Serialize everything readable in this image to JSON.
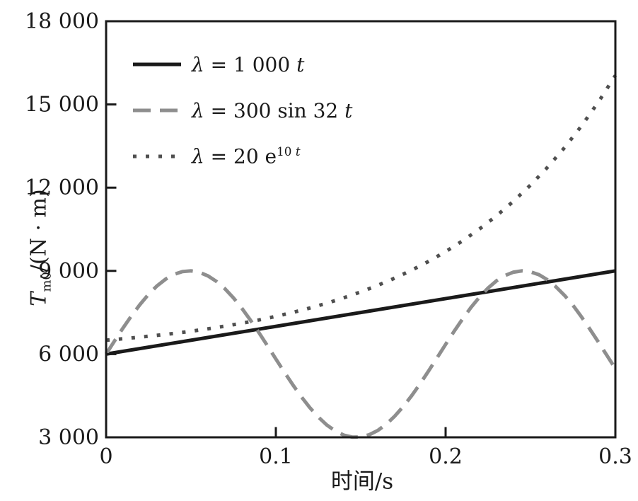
{
  "chart_data": {
    "type": "line",
    "title": "",
    "xlabel": "时间/s",
    "ylabel_segments": [
      {
        "text": "T",
        "style": "italic"
      },
      {
        "text": "m0",
        "style": "sub"
      },
      {
        "text": "/(N · m)",
        "style": "normal"
      }
    ],
    "xlim": [
      0,
      0.3
    ],
    "ylim": [
      3000,
      18000
    ],
    "grid": false,
    "legend_position": "upper-left-inside",
    "xticks": [
      {
        "v": 0,
        "label": "0"
      },
      {
        "v": 0.1,
        "label": "0.1"
      },
      {
        "v": 0.2,
        "label": "0.2"
      },
      {
        "v": 0.3,
        "label": "0.3"
      }
    ],
    "yticks": [
      {
        "v": 3000,
        "label": "3 000"
      },
      {
        "v": 6000,
        "label": "6 000"
      },
      {
        "v": 9000,
        "label": "9 000"
      },
      {
        "v": 12000,
        "label": "12 000"
      },
      {
        "v": 15000,
        "label": "15 000"
      },
      {
        "v": 18000,
        "label": "18 000"
      }
    ],
    "series": [
      {
        "name": "lambda-1000t",
        "style": "solid",
        "color": "#1a1a1a",
        "legend_segments": [
          {
            "text": "λ",
            "style": "italic"
          },
          {
            "text": " = 1 000 ",
            "style": "normal"
          },
          {
            "text": "t",
            "style": "italic"
          }
        ],
        "points": [
          [
            0,
            6000
          ],
          [
            0.3,
            9000
          ]
        ]
      },
      {
        "name": "lambda-300sin32t",
        "style": "dashed",
        "color": "#8e8e8e",
        "legend_segments": [
          {
            "text": "λ",
            "style": "italic"
          },
          {
            "text": " = 300 sin 32 ",
            "style": "normal"
          },
          {
            "text": "t",
            "style": "italic"
          }
        ],
        "points": [
          [
            0,
            6000
          ],
          [
            0.005,
            6478
          ],
          [
            0.01,
            6944
          ],
          [
            0.015,
            7385
          ],
          [
            0.02,
            7792
          ],
          [
            0.025,
            8152
          ],
          [
            0.03,
            8458
          ],
          [
            0.035,
            8700
          ],
          [
            0.04,
            8874
          ],
          [
            0.045,
            8975
          ],
          [
            0.05,
            8999
          ],
          [
            0.055,
            8947
          ],
          [
            0.06,
            8819
          ],
          [
            0.065,
            8620
          ],
          [
            0.07,
            8355
          ],
          [
            0.075,
            8027
          ],
          [
            0.08,
            7648
          ],
          [
            0.085,
            7228
          ],
          [
            0.09,
            6776
          ],
          [
            0.095,
            6304
          ],
          [
            0.1,
            5825
          ],
          [
            0.105,
            5350
          ],
          [
            0.11,
            4892
          ],
          [
            0.115,
            4462
          ],
          [
            0.12,
            4071
          ],
          [
            0.125,
            3730
          ],
          [
            0.13,
            3444
          ],
          [
            0.135,
            3228
          ],
          [
            0.14,
            3080
          ],
          [
            0.145,
            3008
          ],
          [
            0.15,
            3011
          ],
          [
            0.155,
            3092
          ],
          [
            0.16,
            3245
          ],
          [
            0.165,
            3469
          ],
          [
            0.17,
            3760
          ],
          [
            0.175,
            4106
          ],
          [
            0.18,
            4501
          ],
          [
            0.185,
            4934
          ],
          [
            0.19,
            5395
          ],
          [
            0.195,
            5870
          ],
          [
            0.2,
            6350
          ],
          [
            0.205,
            6820
          ],
          [
            0.21,
            7269
          ],
          [
            0.215,
            7686
          ],
          [
            0.22,
            8059
          ],
          [
            0.225,
            8381
          ],
          [
            0.23,
            8642
          ],
          [
            0.235,
            8833
          ],
          [
            0.24,
            8955
          ],
          [
            0.245,
            9000
          ],
          [
            0.25,
            8968
          ],
          [
            0.255,
            8862
          ],
          [
            0.26,
            8678
          ],
          [
            0.265,
            8426
          ],
          [
            0.27,
            8120
          ],
          [
            0.275,
            7764
          ],
          [
            0.28,
            7344
          ],
          [
            0.285,
            6899
          ],
          [
            0.29,
            6433
          ],
          [
            0.295,
            5954
          ],
          [
            0.3,
            5477
          ]
        ]
      },
      {
        "name": "lambda-20e10t",
        "style": "dotted",
        "color": "#4f4f4f",
        "legend_segments": [
          {
            "text": "λ",
            "style": "italic"
          },
          {
            "text": " = 20 e",
            "style": "normal"
          },
          {
            "text": "10 ",
            "style": "sup"
          },
          {
            "text": "t",
            "style": "sup-italic"
          }
        ],
        "points": [
          [
            0,
            6500
          ],
          [
            0.01,
            6553
          ],
          [
            0.02,
            6611
          ],
          [
            0.03,
            6675
          ],
          [
            0.04,
            6746
          ],
          [
            0.05,
            6824
          ],
          [
            0.06,
            6911
          ],
          [
            0.07,
            7007
          ],
          [
            0.08,
            7113
          ],
          [
            0.09,
            7230
          ],
          [
            0.1,
            7359
          ],
          [
            0.11,
            7502
          ],
          [
            0.12,
            7660
          ],
          [
            0.13,
            7835
          ],
          [
            0.14,
            8028
          ],
          [
            0.15,
            8241
          ],
          [
            0.16,
            8477
          ],
          [
            0.17,
            8737
          ],
          [
            0.18,
            9025
          ],
          [
            0.19,
            9343
          ],
          [
            0.2,
            9695
          ],
          [
            0.21,
            10083
          ],
          [
            0.22,
            10513
          ],
          [
            0.23,
            10987
          ],
          [
            0.24,
            11512
          ],
          [
            0.25,
            12091
          ],
          [
            0.26,
            12732
          ],
          [
            0.27,
            13440
          ],
          [
            0.28,
            14222
          ],
          [
            0.29,
            15087
          ],
          [
            0.3,
            16043
          ]
        ]
      }
    ]
  }
}
